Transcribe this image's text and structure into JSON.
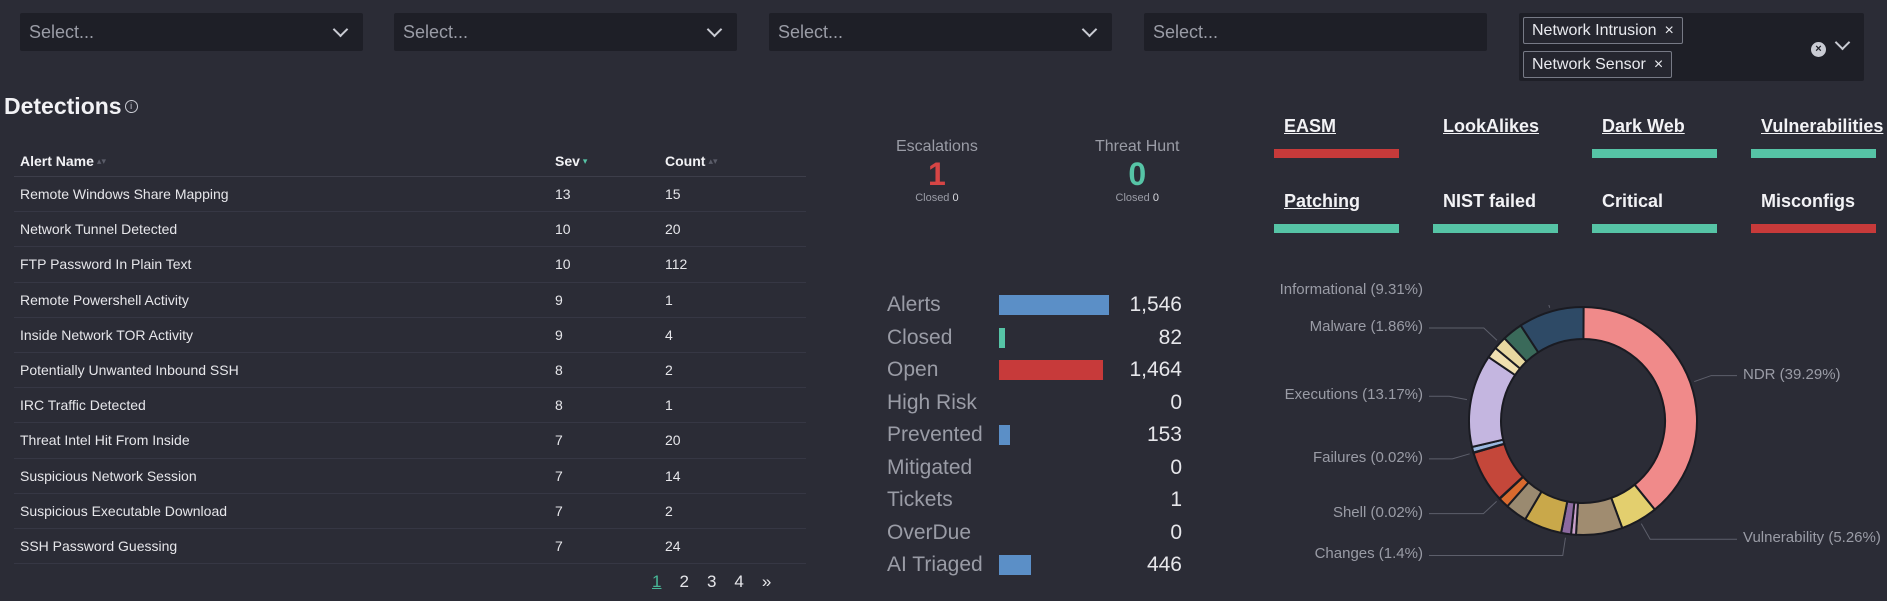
{
  "filters": [
    {
      "placeholder": "Select..."
    },
    {
      "placeholder": "Select..."
    },
    {
      "placeholder": "Select..."
    },
    {
      "placeholder": "Select..."
    }
  ],
  "tag_filter": {
    "tags": [
      "Network Intrusion",
      "Network Sensor"
    ],
    "remove_glyph": "×",
    "clear_glyph": "×"
  },
  "detections": {
    "title": "Detections",
    "info_glyph": "i",
    "columns": [
      "Alert Name",
      "Sev",
      "Count"
    ],
    "sort_glyph": "▴▾",
    "rows": [
      {
        "name": "Remote Windows Share Mapping",
        "sev": "13",
        "count": "15"
      },
      {
        "name": "Network Tunnel Detected",
        "sev": "10",
        "count": "20"
      },
      {
        "name": "FTP Password In Plain Text",
        "sev": "10",
        "count": "112"
      },
      {
        "name": "Remote Powershell Activity",
        "sev": "9",
        "count": "1"
      },
      {
        "name": "Inside Network TOR Activity",
        "sev": "9",
        "count": "4"
      },
      {
        "name": "Potentially Unwanted Inbound SSH",
        "sev": "8",
        "count": "2"
      },
      {
        "name": "IRC Traffic Detected",
        "sev": "8",
        "count": "1"
      },
      {
        "name": "Threat Intel Hit From Inside",
        "sev": "7",
        "count": "20"
      },
      {
        "name": "Suspicious Network Session",
        "sev": "7",
        "count": "14"
      },
      {
        "name": "Suspicious Executable Download",
        "sev": "7",
        "count": "2"
      },
      {
        "name": "SSH Password Guessing",
        "sev": "7",
        "count": "24"
      }
    ],
    "pages": [
      "1",
      "2",
      "3",
      "4",
      "»"
    ]
  },
  "escalations": {
    "label": "Escalations",
    "value": "1",
    "closed_label": "Closed",
    "closed_value": "0",
    "color": "#d64545"
  },
  "threat_hunt": {
    "label": "Threat Hunt",
    "value": "0",
    "closed_label": "Closed",
    "closed_value": "0",
    "color": "#56c4a6"
  },
  "stats": [
    {
      "label": "Alerts",
      "value": "1,546",
      "fill": 1.0,
      "color": "#5b8fc7"
    },
    {
      "label": "Closed",
      "value": "82",
      "fill": 0.05,
      "color": "#56c4a6"
    },
    {
      "label": "Open",
      "value": "1,464",
      "fill": 0.947,
      "color": "#c73a3a"
    },
    {
      "label": "High Risk",
      "value": "0",
      "fill": 0,
      "color": "#5b8fc7"
    },
    {
      "label": "Prevented",
      "value": "153",
      "fill": 0.099,
      "color": "#5b8fc7"
    },
    {
      "label": "Mitigated",
      "value": "0",
      "fill": 0,
      "color": "#5b8fc7"
    },
    {
      "label": "Tickets",
      "value": "1",
      "fill": 0,
      "color": "#5b8fc7"
    },
    {
      "label": "OverDue",
      "value": "0",
      "fill": 0,
      "color": "#5b8fc7"
    },
    {
      "label": "AI Triaged",
      "value": "446",
      "fill": 0.288,
      "color": "#5b8fc7"
    }
  ],
  "categories": [
    {
      "label": "EASM",
      "link": true,
      "status_color": "#c73a3a"
    },
    {
      "label": "LookAlikes",
      "link": true,
      "status_color": ""
    },
    {
      "label": "Dark Web",
      "link": true,
      "status_color": "#56c4a6"
    },
    {
      "label": "Vulnerabilities",
      "link": true,
      "status_color": "#56c4a6"
    },
    {
      "label": "Patching",
      "link": true,
      "status_color": "#56c4a6"
    },
    {
      "label": "NIST failed",
      "link": false,
      "status_color": "#56c4a6"
    },
    {
      "label": "Critical",
      "link": false,
      "status_color": "#56c4a6"
    },
    {
      "label": "Misconfigs",
      "link": false,
      "status_color": "#c73a3a"
    }
  ],
  "chart_data": {
    "type": "pie",
    "donut": true,
    "slices": [
      {
        "label": "NDR (39.29%)",
        "value": 39.29,
        "color": "#f08a8a"
      },
      {
        "label": "Vulnerability (5.26%)",
        "value": 5.26,
        "color": "#e3cf6e"
      },
      {
        "label": "",
        "value": 6.6,
        "color": "#a08c70"
      },
      {
        "label": "",
        "value": 0.7,
        "color": "#c9a0c9"
      },
      {
        "label": "Changes (1.4%)",
        "value": 1.4,
        "color": "#8c6aa0"
      },
      {
        "label": "",
        "value": 5.4,
        "color": "#c9a84a"
      },
      {
        "label": "",
        "value": 3.1,
        "color": "#9a8a70"
      },
      {
        "label": "",
        "value": 1.5,
        "color": "#d96a2e"
      },
      {
        "label": "Shell (0.02%)",
        "value": 0.02,
        "color": "#7a5a3a"
      },
      {
        "label": "",
        "value": 7.4,
        "color": "#c4473a"
      },
      {
        "label": "Failures (0.02%)",
        "value": 0.02,
        "color": "#7aa0d8"
      },
      {
        "label": "",
        "value": 0.8,
        "color": "#9ab8e0"
      },
      {
        "label": "Executions (13.17%)",
        "value": 13.17,
        "color": "#c4b6e0"
      },
      {
        "label": "",
        "value": 1.6,
        "color": "#f0e0b0"
      },
      {
        "label": "Malware (1.86%)",
        "value": 1.86,
        "color": "#e8d8a0"
      },
      {
        "label": "",
        "value": 2.9,
        "color": "#3a6a5a"
      },
      {
        "label": "Informational (9.31%)",
        "value": 9.31,
        "color": "#2e4a66"
      }
    ]
  }
}
